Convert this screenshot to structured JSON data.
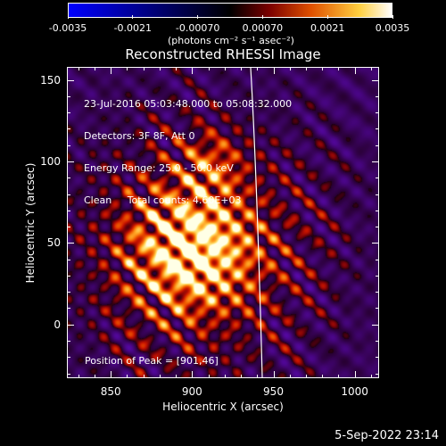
{
  "colorbar": {
    "tick_labels": [
      "-0.0035",
      "-0.0021",
      "-0.00070",
      "0.00070",
      "0.0021",
      "0.0035"
    ],
    "units_label": "(photons cm⁻² s⁻¹ asec⁻²)",
    "range": [
      -0.0035,
      0.0035
    ],
    "colors": [
      "#0000ff",
      "#000000",
      "#7a0000",
      "#e05000",
      "#ffd040",
      "#ffffff"
    ]
  },
  "plot": {
    "title": "Reconstructed RHESSI Image",
    "info_lines": [
      "23-Jul-2016 05:03:48.000 to 05:08:32.000",
      "Detectors: 3F 8F, Att 0",
      "Energy Range: 25.0 - 50.0 keV",
      "Clean     Total counts: 4.60E+03"
    ],
    "peak_label": "Position of Peak = [901,46]",
    "xlabel": "Heliocentric X (arcsec)",
    "ylabel": "Heliocentric Y (arcsec)",
    "x_ticks": [
      "850",
      "900",
      "950",
      "1000"
    ],
    "y_ticks": [
      "0",
      "50",
      "100",
      "150"
    ],
    "xlim": [
      823,
      1015
    ],
    "ylim": [
      -33,
      158
    ],
    "peak_position": [
      901,
      46
    ],
    "limb_color": "#ffffff"
  },
  "footer": {
    "timestamp": "5-Sep-2022 23:14"
  }
}
